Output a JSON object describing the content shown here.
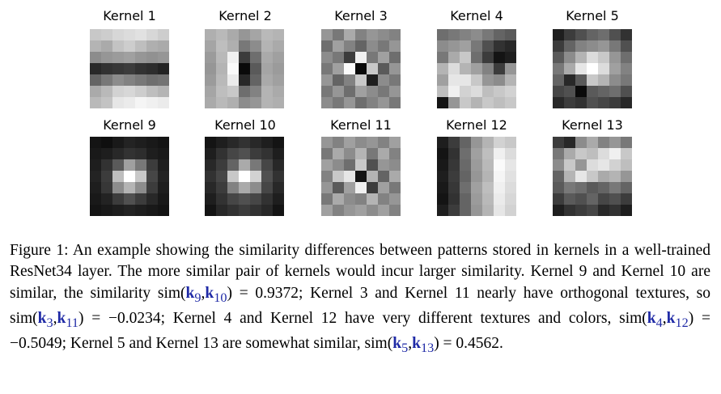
{
  "kernels": [
    {
      "label": "Kernel 1",
      "pixels": [
        [
          200,
          205,
          215,
          220,
          225,
          215,
          205
        ],
        [
          180,
          170,
          195,
          205,
          190,
          175,
          170
        ],
        [
          140,
          150,
          155,
          160,
          150,
          145,
          150
        ],
        [
          40,
          50,
          55,
          60,
          50,
          45,
          35
        ],
        [
          100,
          120,
          140,
          130,
          120,
          110,
          115
        ],
        [
          170,
          185,
          210,
          215,
          205,
          190,
          180
        ],
        [
          185,
          195,
          230,
          235,
          245,
          240,
          235
        ]
      ]
    },
    {
      "label": "Kernel 2",
      "pixels": [
        [
          175,
          185,
          170,
          150,
          165,
          185,
          180
        ],
        [
          165,
          190,
          175,
          120,
          140,
          180,
          170
        ],
        [
          155,
          185,
          240,
          60,
          110,
          170,
          160
        ],
        [
          150,
          180,
          250,
          10,
          90,
          165,
          155
        ],
        [
          155,
          185,
          235,
          40,
          100,
          170,
          160
        ],
        [
          165,
          190,
          200,
          110,
          130,
          180,
          170
        ],
        [
          170,
          185,
          175,
          140,
          150,
          180,
          175
        ]
      ]
    },
    {
      "label": "Kernel 3",
      "pixels": [
        [
          150,
          120,
          170,
          130,
          150,
          140,
          130
        ],
        [
          110,
          160,
          130,
          100,
          140,
          120,
          150
        ],
        [
          140,
          120,
          60,
          240,
          120,
          160,
          110
        ],
        [
          120,
          160,
          250,
          10,
          200,
          90,
          150
        ],
        [
          150,
          100,
          130,
          200,
          30,
          140,
          120
        ],
        [
          120,
          150,
          110,
          160,
          140,
          120,
          150
        ],
        [
          140,
          120,
          150,
          110,
          130,
          150,
          120
        ]
      ]
    },
    {
      "label": "Kernel 4",
      "pixels": [
        [
          110,
          120,
          130,
          140,
          120,
          100,
          90
        ],
        [
          140,
          150,
          160,
          120,
          80,
          50,
          40
        ],
        [
          120,
          170,
          200,
          110,
          60,
          20,
          30
        ],
        [
          180,
          220,
          180,
          160,
          130,
          60,
          150
        ],
        [
          160,
          230,
          230,
          200,
          150,
          140,
          180
        ],
        [
          190,
          240,
          210,
          220,
          190,
          200,
          210
        ],
        [
          20,
          150,
          200,
          180,
          200,
          190,
          200
        ]
      ]
    },
    {
      "label": "Kernel 5",
      "pixels": [
        [
          30,
          60,
          80,
          100,
          110,
          80,
          50
        ],
        [
          60,
          100,
          130,
          140,
          150,
          120,
          80
        ],
        [
          90,
          140,
          180,
          220,
          200,
          150,
          110
        ],
        [
          120,
          170,
          230,
          255,
          220,
          160,
          130
        ],
        [
          100,
          40,
          90,
          200,
          180,
          140,
          120
        ],
        [
          70,
          80,
          10,
          90,
          100,
          110,
          80
        ],
        [
          40,
          60,
          50,
          80,
          70,
          60,
          40
        ]
      ]
    },
    {
      "label": "Kernel 9",
      "pixels": [
        [
          20,
          15,
          25,
          35,
          30,
          25,
          20
        ],
        [
          25,
          30,
          40,
          50,
          45,
          30,
          25
        ],
        [
          30,
          50,
          90,
          160,
          120,
          60,
          30
        ],
        [
          35,
          60,
          190,
          255,
          200,
          70,
          35
        ],
        [
          30,
          55,
          140,
          180,
          140,
          60,
          30
        ],
        [
          25,
          35,
          60,
          80,
          60,
          40,
          25
        ],
        [
          20,
          25,
          30,
          35,
          30,
          25,
          20
        ]
      ]
    },
    {
      "label": "Kernel 10",
      "pixels": [
        [
          20,
          30,
          40,
          50,
          40,
          30,
          20
        ],
        [
          30,
          50,
          70,
          80,
          60,
          50,
          30
        ],
        [
          40,
          60,
          100,
          170,
          120,
          70,
          40
        ],
        [
          50,
          70,
          200,
          255,
          210,
          80,
          50
        ],
        [
          40,
          60,
          130,
          170,
          140,
          70,
          40
        ],
        [
          30,
          50,
          70,
          80,
          70,
          50,
          30
        ],
        [
          20,
          40,
          50,
          60,
          50,
          40,
          20
        ]
      ]
    },
    {
      "label": "Kernel 11",
      "pixels": [
        [
          150,
          130,
          160,
          140,
          150,
          130,
          160
        ],
        [
          120,
          170,
          140,
          180,
          120,
          170,
          130
        ],
        [
          160,
          140,
          110,
          200,
          80,
          150,
          140
        ],
        [
          130,
          200,
          230,
          20,
          180,
          100,
          170
        ],
        [
          150,
          90,
          160,
          240,
          60,
          160,
          120
        ],
        [
          120,
          170,
          140,
          130,
          180,
          130,
          150
        ],
        [
          160,
          130,
          150,
          160,
          140,
          160,
          130
        ]
      ]
    },
    {
      "label": "Kernel 12",
      "pixels": [
        [
          30,
          60,
          100,
          150,
          180,
          210,
          200
        ],
        [
          20,
          50,
          110,
          160,
          190,
          240,
          220
        ],
        [
          25,
          55,
          105,
          155,
          185,
          250,
          230
        ],
        [
          30,
          60,
          100,
          150,
          180,
          245,
          225
        ],
        [
          25,
          55,
          110,
          160,
          190,
          240,
          220
        ],
        [
          20,
          50,
          100,
          155,
          185,
          235,
          215
        ],
        [
          30,
          60,
          100,
          150,
          180,
          230,
          210
        ]
      ]
    },
    {
      "label": "Kernel 13",
      "pixels": [
        [
          60,
          40,
          140,
          170,
          130,
          150,
          120
        ],
        [
          120,
          170,
          200,
          190,
          220,
          240,
          200
        ],
        [
          140,
          200,
          150,
          220,
          230,
          210,
          190
        ],
        [
          100,
          180,
          230,
          200,
          170,
          180,
          150
        ],
        [
          90,
          120,
          110,
          90,
          100,
          120,
          100
        ],
        [
          60,
          90,
          80,
          100,
          70,
          80,
          60
        ],
        [
          30,
          50,
          60,
          70,
          40,
          50,
          30
        ]
      ]
    }
  ],
  "caption": {
    "p1": "Figure 1: An example showing the similarity differences between patterns stored in kernels in a well-trained ResNet34 layer. The more similar pair of kernels would incur larger similarity. Kernel 9 and Kernel 10 are similar, the similarity sim(",
    "s1a": "k",
    "s1a_sub": "9",
    "s1b": "k",
    "s1b_sub": "10",
    "v1": ") = 0.9372; Kernel 3 and Kernel 11 nearly have orthogonal textures, so sim(",
    "s2a": "k",
    "s2a_sub": "3",
    "s2b": "k",
    "s2b_sub": "11",
    "v2": ") = −0.0234; Kernel 4 and Kernel 12 have very different textures and colors, sim(",
    "s3a": "k",
    "s3a_sub": "4",
    "s3b": "k",
    "s3b_sub": "12",
    "v3": ") = −0.5049; Kernel 5 and Kernel 13 are somewhat similar, sim(",
    "s4a": "k",
    "s4a_sub": "5",
    "s4b": "k",
    "s4b_sub": "13",
    "v4": ") = 0.4562."
  }
}
